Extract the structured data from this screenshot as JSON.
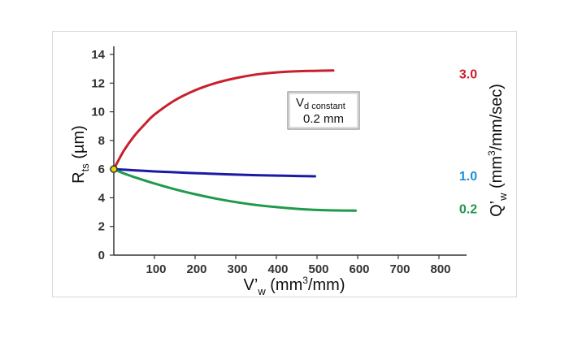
{
  "chart_data": {
    "type": "line",
    "x_axis": {
      "label_main": "V’",
      "label_sub": "w",
      "label_unit_pre": " (mm",
      "label_unit_sup": "3",
      "label_unit_post": "/mm)",
      "range": [
        0,
        850
      ],
      "ticks": [
        "100",
        "200",
        "300",
        "400",
        "500",
        "600",
        "700",
        "800"
      ],
      "tick_values": [
        100,
        200,
        300,
        400,
        500,
        600,
        700,
        800
      ]
    },
    "y_axis": {
      "label_main": "R",
      "label_sub": "ts",
      "label_unit": " (µm)",
      "range": [
        0,
        14
      ],
      "ticks": [
        "0",
        "2",
        "4",
        "6",
        "8",
        "10",
        "12",
        "14"
      ],
      "tick_values": [
        0,
        2,
        4,
        6,
        8,
        10,
        12,
        14
      ]
    },
    "right_axis": {
      "label_main": "Q’",
      "label_sub": "w",
      "label_unit_pre": " (mm",
      "label_unit_sup": "3",
      "label_unit_post": "/mm/sec)"
    },
    "annotation": {
      "line1_main": "V",
      "line1_sub": "d constant",
      "line2": "0.2 mm"
    },
    "start_point": {
      "x": 0,
      "y": 6,
      "color": "#e8d800"
    },
    "series": [
      {
        "name": "3.0",
        "color": "#c8202c",
        "x": [
          0,
          25,
          50,
          75,
          100,
          150,
          200,
          250,
          300,
          350,
          400,
          450,
          500,
          540
        ],
        "y": [
          6.0,
          7.3,
          8.3,
          9.1,
          9.8,
          10.8,
          11.5,
          12.0,
          12.35,
          12.6,
          12.75,
          12.83,
          12.86,
          12.88
        ]
      },
      {
        "name": "1.0",
        "color": "#1a1aa6",
        "x": [
          0,
          50,
          100,
          150,
          200,
          250,
          300,
          350,
          400,
          450,
          495
        ],
        "y": [
          6.0,
          5.92,
          5.84,
          5.78,
          5.72,
          5.67,
          5.62,
          5.58,
          5.55,
          5.52,
          5.5
        ]
      },
      {
        "name": "0.2",
        "color": "#1f9a4a",
        "x": [
          0,
          25,
          50,
          100,
          150,
          200,
          250,
          300,
          350,
          400,
          450,
          500,
          550,
          595
        ],
        "y": [
          6.0,
          5.7,
          5.45,
          5.0,
          4.6,
          4.25,
          3.95,
          3.7,
          3.5,
          3.35,
          3.23,
          3.15,
          3.12,
          3.1
        ]
      }
    ],
    "series_label_colors": {
      "3.0": "#c8202c",
      "1.0": "#1a90d8",
      "0.2": "#1f9a4a"
    }
  }
}
